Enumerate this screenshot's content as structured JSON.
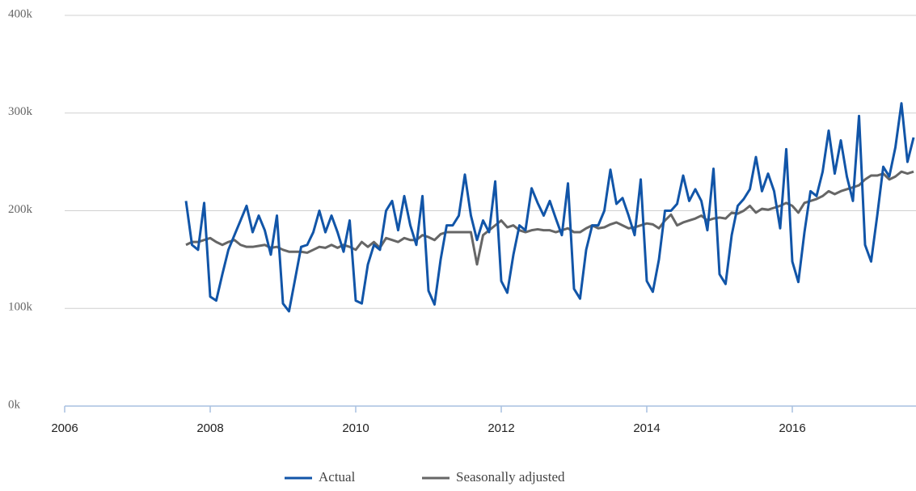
{
  "chart_data": {
    "type": "line",
    "x": [
      2007.667,
      2007.75,
      2007.833,
      2007.917,
      2008,
      2008.083,
      2008.167,
      2008.25,
      2008.333,
      2008.417,
      2008.5,
      2008.583,
      2008.667,
      2008.75,
      2008.833,
      2008.917,
      2009,
      2009.083,
      2009.167,
      2009.25,
      2009.333,
      2009.417,
      2009.5,
      2009.583,
      2009.667,
      2009.75,
      2009.833,
      2009.917,
      2010,
      2010.083,
      2010.167,
      2010.25,
      2010.333,
      2010.417,
      2010.5,
      2010.583,
      2010.667,
      2010.75,
      2010.833,
      2010.917,
      2011,
      2011.083,
      2011.167,
      2011.25,
      2011.333,
      2011.417,
      2011.5,
      2011.583,
      2011.667,
      2011.75,
      2011.833,
      2011.917,
      2012,
      2012.083,
      2012.167,
      2012.25,
      2012.333,
      2012.417,
      2012.5,
      2012.583,
      2012.667,
      2012.75,
      2012.833,
      2012.917,
      2013,
      2013.083,
      2013.167,
      2013.25,
      2013.333,
      2013.417,
      2013.5,
      2013.583,
      2013.667,
      2013.75,
      2013.833,
      2013.917,
      2014,
      2014.083,
      2014.167,
      2014.25,
      2014.333,
      2014.417,
      2014.5,
      2014.583,
      2014.667,
      2014.75,
      2014.833,
      2014.917,
      2015,
      2015.083,
      2015.167,
      2015.25,
      2015.333,
      2015.417,
      2015.5,
      2015.583,
      2015.667,
      2015.75,
      2015.833,
      2015.917,
      2016,
      2016.083,
      2016.167,
      2016.25,
      2016.333,
      2016.417,
      2016.5,
      2016.583,
      2016.667,
      2016.75,
      2016.833,
      2016.917,
      2017,
      2017.083,
      2017.167,
      2017.25,
      2017.333,
      2017.417,
      2017.5,
      2017.583,
      2017.667
    ],
    "series": [
      {
        "name": "Actual",
        "color": "#1155a8",
        "values": [
          210000,
          165000,
          160000,
          208000,
          112000,
          108000,
          135000,
          160000,
          175000,
          190000,
          205000,
          178000,
          195000,
          180000,
          155000,
          195000,
          105000,
          97000,
          130000,
          163000,
          165000,
          178000,
          200000,
          178000,
          195000,
          178000,
          158000,
          190000,
          108000,
          105000,
          145000,
          165000,
          160000,
          200000,
          210000,
          180000,
          215000,
          185000,
          165000,
          215000,
          118000,
          104000,
          150000,
          185000,
          185000,
          195000,
          237000,
          195000,
          170000,
          190000,
          178000,
          230000,
          128000,
          116000,
          155000,
          185000,
          180000,
          223000,
          208000,
          195000,
          210000,
          192000,
          175000,
          228000,
          120000,
          110000,
          160000,
          185000,
          185000,
          200000,
          242000,
          207000,
          213000,
          195000,
          175000,
          232000,
          128000,
          117000,
          150000,
          200000,
          200000,
          207000,
          236000,
          210000,
          222000,
          210000,
          180000,
          243000,
          135000,
          125000,
          175000,
          205000,
          212000,
          222000,
          255000,
          220000,
          238000,
          220000,
          182000,
          263000,
          148000,
          127000,
          178000,
          220000,
          215000,
          240000,
          282000,
          238000,
          272000,
          235000,
          210000,
          297000,
          165000,
          148000,
          195000,
          245000,
          235000,
          265000,
          310000,
          250000,
          275000
        ]
      },
      {
        "name": "Seasonally adjusted",
        "color": "#666666",
        "values": [
          165000,
          168000,
          168000,
          170000,
          172000,
          168000,
          165000,
          168000,
          170000,
          165000,
          163000,
          163000,
          164000,
          165000,
          162000,
          163000,
          160000,
          158000,
          158000,
          158000,
          157000,
          160000,
          163000,
          162000,
          165000,
          162000,
          165000,
          163000,
          160000,
          168000,
          163000,
          168000,
          162000,
          172000,
          170000,
          168000,
          172000,
          170000,
          170000,
          175000,
          173000,
          170000,
          176000,
          178000,
          178000,
          178000,
          178000,
          178000,
          145000,
          175000,
          180000,
          185000,
          190000,
          183000,
          185000,
          180000,
          178000,
          180000,
          181000,
          180000,
          180000,
          178000,
          180000,
          182000,
          178000,
          178000,
          182000,
          185000,
          182000,
          183000,
          186000,
          188000,
          185000,
          182000,
          183000,
          185000,
          187000,
          186000,
          182000,
          190000,
          196000,
          185000,
          188000,
          190000,
          192000,
          195000,
          190000,
          192000,
          193000,
          192000,
          198000,
          197000,
          200000,
          205000,
          198000,
          202000,
          201000,
          203000,
          205000,
          208000,
          205000,
          198000,
          208000,
          210000,
          212000,
          215000,
          220000,
          217000,
          220000,
          222000,
          224000,
          226000,
          232000,
          236000,
          236000,
          238000,
          232000,
          235000,
          240000,
          238000,
          240000
        ]
      }
    ],
    "xlim": [
      2006,
      2017.7
    ],
    "xticks": [
      2006,
      2008,
      2010,
      2012,
      2014,
      2016
    ],
    "ylim": [
      0,
      400000
    ],
    "yticks": [
      {
        "value": 0,
        "label": "0k"
      },
      {
        "value": 100000,
        "label": "100k"
      },
      {
        "value": 200000,
        "label": "200k"
      },
      {
        "value": 300000,
        "label": "300k"
      },
      {
        "value": 400000,
        "label": "400k"
      }
    ],
    "grid": true,
    "legend": "bottom"
  }
}
